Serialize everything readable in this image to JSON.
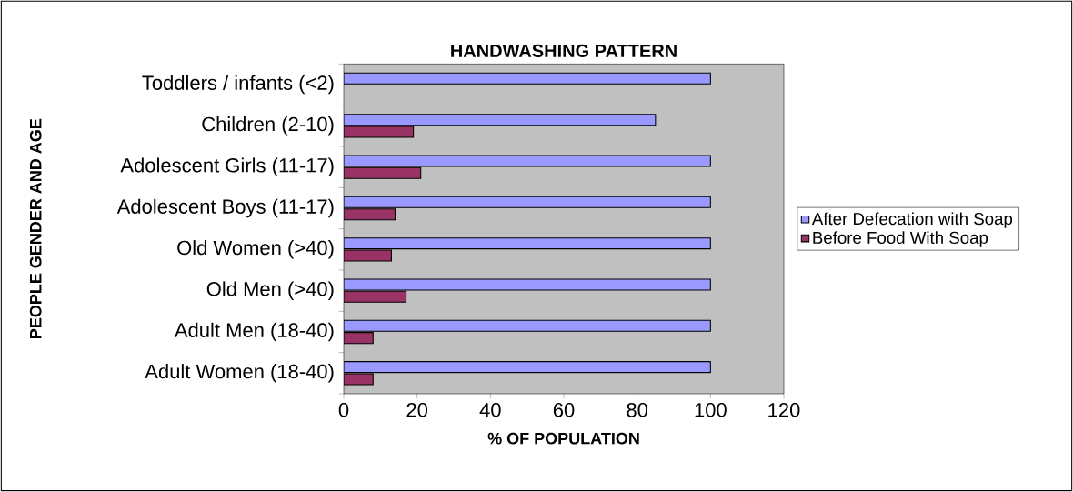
{
  "chart_data": {
    "type": "bar",
    "orientation": "horizontal",
    "title": "HANDWASHING PATTERN",
    "xlabel": "% OF POPULATION",
    "ylabel": "PEOPLE GENDER AND AGE",
    "categories": [
      "Toddlers / infants (<2)",
      "Children (2-10)",
      "Adolescent Girls (11-17)",
      "Adolescent Boys (11-17)",
      "Old Women (>40)",
      "Old Men (>40)",
      "Adult Men    (18-40)",
      "Adult Women (18-40)"
    ],
    "series": [
      {
        "name": "After Defecation with Soap",
        "color": "#9999ff",
        "values": [
          100,
          85,
          100,
          100,
          100,
          100,
          100,
          100
        ]
      },
      {
        "name": "Before Food With Soap",
        "color": "#993366",
        "values": [
          null,
          19,
          21,
          14,
          13,
          17,
          8,
          8
        ]
      }
    ],
    "xlim": [
      0,
      120
    ],
    "xticks": [
      0,
      20,
      40,
      60,
      80,
      100,
      120
    ],
    "legend": "right",
    "grid": false
  }
}
